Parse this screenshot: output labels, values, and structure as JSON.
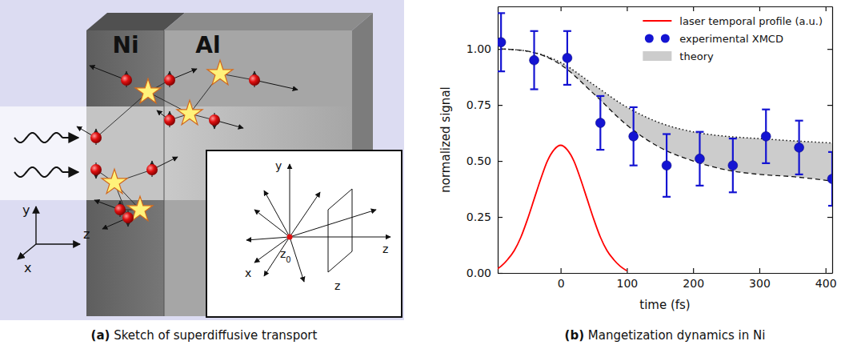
{
  "chart_data": {
    "type": "line",
    "caption": "(b) Mangetization dynamics in Ni",
    "x_label": "time (fs)",
    "y_label": "normalized signal",
    "xlim": [
      -95,
      410
    ],
    "ylim": [
      0,
      1.19
    ],
    "xticks": [
      0,
      100,
      200,
      300,
      400
    ],
    "yticks": [
      {
        "value": 0,
        "label": "0.00"
      },
      {
        "value": 0.25,
        "label": "0.25"
      },
      {
        "value": 0.5,
        "label": "0.50"
      },
      {
        "value": 0.75,
        "label": "0.75"
      },
      {
        "value": 1,
        "label": "1.00"
      }
    ],
    "legend": "upper right",
    "grid": false,
    "series": [
      {
        "name": "laser temporal profile (a.u.)",
        "type": "line",
        "color": "#ff0000",
        "x": [
          -100,
          -90,
          -80,
          -70,
          -60,
          -50,
          -40,
          -30,
          -20,
          -10,
          0,
          10,
          20,
          30,
          40,
          50,
          60,
          70,
          80,
          90,
          100
        ],
        "values": [
          0.01,
          0.03,
          0.06,
          0.1,
          0.16,
          0.24,
          0.33,
          0.42,
          0.5,
          0.55,
          0.57,
          0.55,
          0.5,
          0.42,
          0.33,
          0.24,
          0.16,
          0.1,
          0.06,
          0.03,
          0.01
        ]
      },
      {
        "name": "experimental XMCD",
        "type": "scatter",
        "color": "#1414d2",
        "marker": "circle",
        "x": [
          -90,
          -40,
          10,
          60,
          110,
          160,
          210,
          260,
          310,
          360,
          410
        ],
        "values": [
          1.03,
          0.95,
          0.96,
          0.67,
          0.61,
          0.48,
          0.51,
          0.48,
          0.61,
          0.56,
          0.42
        ],
        "errors": [
          0.13,
          0.13,
          0.12,
          0.12,
          0.13,
          0.14,
          0.12,
          0.12,
          0.12,
          0.12,
          0.12
        ]
      },
      {
        "name": "theory",
        "type": "area",
        "color": "#cccccc",
        "x": [
          -90,
          -50,
          0,
          50,
          100,
          150,
          200,
          250,
          300,
          350,
          410
        ],
        "values": [
          1.0,
          0.99,
          0.93,
          0.8,
          0.66,
          0.56,
          0.5,
          0.46,
          0.44,
          0.43,
          0.41
        ],
        "upper": [
          1.0,
          0.99,
          0.94,
          0.84,
          0.74,
          0.67,
          0.63,
          0.61,
          0.6,
          0.59,
          0.58
        ]
      }
    ]
  },
  "diagram": {
    "caption": "(a) Sketch of superdiffusive transport",
    "materials": [
      "Ni",
      "Al"
    ],
    "axes": {
      "x": "x",
      "y": "y",
      "z": "z"
    },
    "inset": {
      "y": "y",
      "x": "x",
      "z_origin": {
        "text": "z",
        "sub": "0"
      },
      "z_plane": "z",
      "z_axis": "z"
    }
  }
}
